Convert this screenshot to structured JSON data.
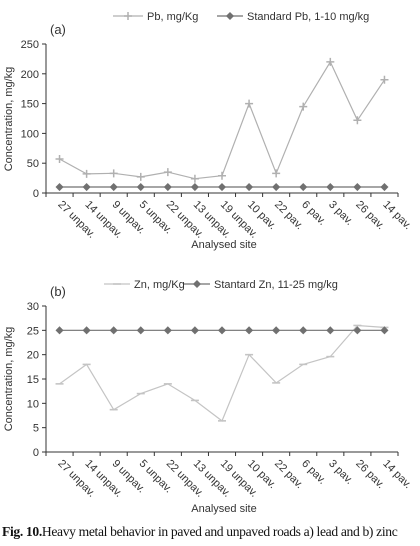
{
  "chart_data": [
    {
      "type": "line",
      "panel_label": "(a)",
      "categories": [
        "27 unpav.",
        "14 unpav.",
        "9 unpav.",
        "5 unpav.",
        "22 unpav.",
        "13 unpav.",
        "19 unpav.",
        "10 pav.",
        "22 pav.",
        "6 pav.",
        "3 pav.",
        "26 pav.",
        "14 pav."
      ],
      "series": [
        {
          "name": "Pb, mg/Kg",
          "marker": "plus",
          "color": "#b0b0b0",
          "values": [
            57,
            32,
            33,
            27,
            35,
            24,
            29,
            150,
            33,
            145,
            220,
            122,
            190
          ]
        },
        {
          "name": "Standard Pb,  1-10 mg/kg",
          "marker": "diamond",
          "color": "#707070",
          "values": [
            10,
            10,
            10,
            10,
            10,
            10,
            10,
            10,
            10,
            10,
            10,
            10,
            10
          ]
        }
      ],
      "ylabel": "Concentration, mg/kg",
      "xlabel": "Analysed site",
      "ylim": [
        0,
        250
      ],
      "yticks": [
        0,
        50,
        100,
        150,
        200,
        250
      ],
      "legend_position": "top"
    },
    {
      "type": "line",
      "panel_label": "(b)",
      "categories": [
        "27 unpav.",
        "14 unpav.",
        "9 unpav.",
        "5 unpav.",
        "22 unpav.",
        "13 unpav.",
        "19 unpav.",
        "10 pav.",
        "22 pav.",
        "6 pav.",
        "3 pav.",
        "26 pav.",
        "14 pav."
      ],
      "series": [
        {
          "name": "Zn, mg/Kg",
          "marker": "dash",
          "color": "#c4c4c4",
          "values": [
            14,
            18,
            8.7,
            12,
            14,
            10.6,
            6.4,
            20,
            14.2,
            18,
            19.6,
            26,
            25.6
          ]
        },
        {
          "name": "Stantard  Zn,  11-25 mg/kg",
          "marker": "diamond",
          "color": "#707070",
          "values": [
            25,
            25,
            25,
            25,
            25,
            25,
            25,
            25,
            25,
            25,
            25,
            25,
            25
          ]
        }
      ],
      "ylabel": "Concentration, mg/kg",
      "xlabel": "Analysed site",
      "ylim": [
        0,
        30
      ],
      "yticks": [
        0,
        5,
        10,
        15,
        20,
        25,
        30
      ],
      "legend_position": "top"
    }
  ],
  "caption": {
    "label": "Fig. 10.",
    "text": "Heavy metal behavior in paved and unpaved roads a) lead and b) zinc"
  }
}
